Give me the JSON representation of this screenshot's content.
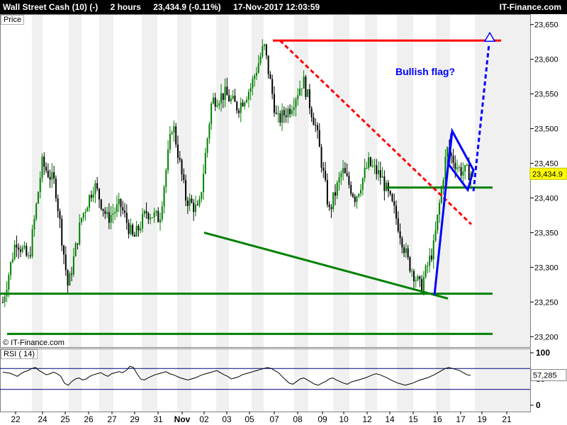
{
  "header": {
    "instrument": "Wall Street Cash (10) (-)",
    "timeframe": "2 hours",
    "quote": "23,434.9 (-0.11%)",
    "datetime": "17-Nov-2017 12:03:59",
    "brand": "IT-Finance.com"
  },
  "panels": {
    "price_label": "Price",
    "rsi_label": "RSI ( 14)",
    "copyright": "© IT-Finance.com"
  },
  "colors": {
    "background": "#ffffff",
    "bull": "#008000",
    "bear": "#000000",
    "support": "#008000",
    "resistance": "#ff0000",
    "flag": "#0000ff",
    "rsi_band": "#000080"
  },
  "chart_data": {
    "type": "candlestick",
    "annotation": "Bullish flag?",
    "y_range": [
      23185,
      23665
    ],
    "y_ticks": [
      23200,
      23250,
      23300,
      23350,
      23400,
      23450,
      23500,
      23550,
      23600,
      23650
    ],
    "y_tick_labels": [
      "23,200",
      "23,250",
      "23,300",
      "23,350",
      "23,400",
      "23,450",
      "23,500",
      "23,550",
      "23,600",
      "23,650"
    ],
    "last_price": 23434.9,
    "last_price_label": "23,434.9",
    "x_ticks": [
      "22",
      "24",
      "25",
      "26",
      "27",
      "29",
      "31",
      "Nov",
      "02",
      "03",
      "05",
      "07",
      "08",
      "09",
      "10",
      "12",
      "14",
      "15",
      "16",
      "17",
      "19",
      "21"
    ],
    "price_path": [
      [
        "Oct 20",
        23250
      ],
      [
        "Oct 21",
        23340
      ],
      [
        "Oct 23",
        23310
      ],
      [
        "Oct 24",
        23450
      ],
      [
        "Oct 24",
        23420
      ],
      [
        "Oct 25",
        23270
      ],
      [
        "Oct 25",
        23370
      ],
      [
        "Oct 26",
        23420
      ],
      [
        "Oct 27",
        23370
      ],
      [
        "Oct 28",
        23390
      ],
      [
        "Oct 29",
        23340
      ],
      [
        "Oct 30",
        23380
      ],
      [
        "Oct 31",
        23370
      ],
      [
        "Nov 01",
        23510
      ],
      [
        "Nov 01",
        23400
      ],
      [
        "Nov 02",
        23380
      ],
      [
        "Nov 03",
        23540
      ],
      [
        "Nov 04",
        23550
      ],
      [
        "Nov 05",
        23530
      ],
      [
        "Nov 06",
        23560
      ],
      [
        "Nov 07",
        23620
      ],
      [
        "Nov 08",
        23510
      ],
      [
        "Nov 09",
        23530
      ],
      [
        "Nov 09",
        23570
      ],
      [
        "Nov 10",
        23500
      ],
      [
        "Nov 11",
        23380
      ],
      [
        "Nov 12",
        23440
      ],
      [
        "Nov 13",
        23400
      ],
      [
        "Nov 14",
        23450
      ],
      [
        "Nov 14",
        23430
      ],
      [
        "Nov 15",
        23380
      ],
      [
        "Nov 15",
        23310
      ],
      [
        "Nov 16",
        23270
      ],
      [
        "Nov 17",
        23330
      ],
      [
        "Nov 17",
        23470
      ],
      [
        "Nov 18",
        23440
      ],
      [
        "Nov 18",
        23435
      ]
    ],
    "lines": {
      "resistance": 23627,
      "support_upper": 23262,
      "support_lower": 23204,
      "flag_base": 23415,
      "wedge_lower": [
        [
          23350
        ],
        [
          23255
        ]
      ],
      "dashed_downtrend": [
        [
          23627
        ],
        [
          23362
        ]
      ],
      "flag_pole": [
        [
          23260
        ],
        [
          23493
        ]
      ],
      "target": 23630
    },
    "rsi": {
      "range": [
        0,
        100
      ],
      "ticks": [
        0,
        50,
        100
      ],
      "bands": [
        30,
        70
      ],
      "last": 57.285,
      "last_label": "57,285",
      "values": [
        63,
        62,
        61,
        58,
        55,
        60,
        64,
        66,
        70,
        72,
        66,
        62,
        58,
        60,
        63,
        60,
        55,
        42,
        38,
        45,
        50,
        52,
        48,
        50,
        55,
        58,
        60,
        62,
        58,
        55,
        60,
        62,
        64,
        62,
        66,
        74,
        72,
        60,
        50,
        48,
        52,
        55,
        58,
        60,
        62,
        64,
        60,
        58,
        55,
        52,
        50,
        48,
        50,
        52,
        55,
        58,
        60,
        62,
        64,
        66,
        62,
        58,
        55,
        50,
        52,
        54,
        58,
        60,
        62,
        64,
        66,
        68,
        70,
        72,
        70,
        66,
        62,
        55,
        48,
        42,
        40,
        45,
        50,
        52,
        48,
        44,
        40,
        38,
        42,
        45,
        50,
        52,
        48,
        45,
        42,
        40,
        44,
        46,
        48,
        50,
        52,
        55,
        58,
        60,
        58,
        55,
        52,
        48,
        45,
        42,
        40,
        38,
        40,
        42,
        45,
        48,
        50,
        52,
        55,
        58,
        62,
        66,
        70,
        72,
        70,
        68,
        66,
        62,
        58,
        57
      ]
    }
  }
}
